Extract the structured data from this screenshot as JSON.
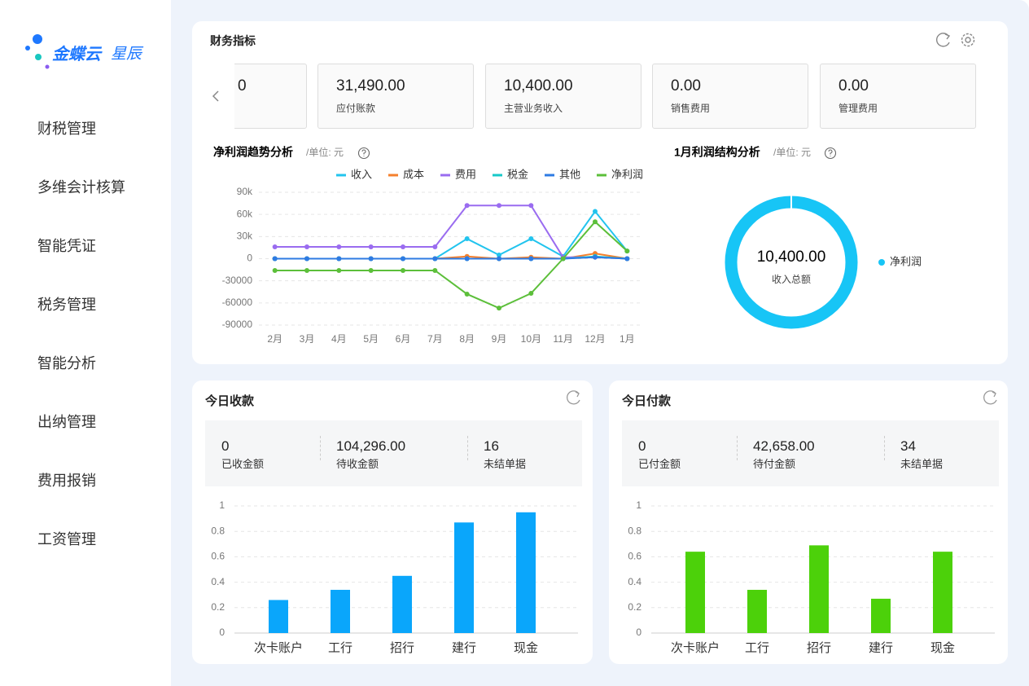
{
  "sidebar": {
    "logo": "金蝶云",
    "logo_sub": "星辰",
    "menu": [
      "财税管理",
      "多维会计核算",
      "智能凭证",
      "税务管理",
      "智能分析",
      "出纳管理",
      "费用报销",
      "工资管理"
    ]
  },
  "finance": {
    "title": "财务指标",
    "cards": [
      {
        "value": "0"
      },
      {
        "value": "31,490.00",
        "label": "应付账款"
      },
      {
        "value": "10,400.00",
        "label": "主营业务收入"
      },
      {
        "value": "0.00",
        "label": "销售费用"
      },
      {
        "value": "0.00",
        "label": "管理费用"
      }
    ]
  },
  "receipts": {
    "title": "今日收款",
    "stats": [
      {
        "value": "0",
        "label": "已收金额"
      },
      {
        "value": "104,296.00",
        "label": "待收金额"
      },
      {
        "value": "16",
        "label": "未结单据"
      }
    ]
  },
  "payments": {
    "title": "今日付款",
    "stats": [
      {
        "value": "0",
        "label": "已付金额"
      },
      {
        "value": "42,658.00",
        "label": "待付金额"
      },
      {
        "value": "34",
        "label": "未结单据"
      }
    ]
  },
  "chart_data": [
    {
      "type": "line",
      "title": "净利润趋势分析",
      "unit": "/单位: 元",
      "categories": [
        "2月",
        "3月",
        "4月",
        "5月",
        "6月",
        "7月",
        "8月",
        "9月",
        "10月",
        "11月",
        "12月",
        "1月"
      ],
      "series": [
        {
          "name": "收入",
          "color": "#22c4ee",
          "values": [
            0,
            0,
            0,
            0,
            0,
            0,
            27000,
            5000,
            27000,
            3000,
            64000,
            10400
          ]
        },
        {
          "name": "成本",
          "color": "#f5802d",
          "values": [
            0,
            0,
            0,
            0,
            0,
            0,
            3000,
            0,
            2000,
            0,
            7000,
            0
          ]
        },
        {
          "name": "费用",
          "color": "#9a6cf0",
          "values": [
            16000,
            16000,
            16000,
            16000,
            16000,
            16000,
            72000,
            72000,
            72000,
            2000,
            2000,
            0
          ]
        },
        {
          "name": "税金",
          "color": "#17c9c9",
          "values": [
            0,
            0,
            0,
            0,
            0,
            0,
            0,
            0,
            0,
            0,
            3000,
            0
          ]
        },
        {
          "name": "其他",
          "color": "#2e7be3",
          "values": [
            0,
            0,
            0,
            0,
            0,
            0,
            0,
            0,
            0,
            0,
            2000,
            0
          ]
        },
        {
          "name": "净利润",
          "color": "#5cbf3a",
          "values": [
            -16000,
            -16000,
            -16000,
            -16000,
            -16000,
            -16000,
            -48000,
            -67000,
            -47000,
            0,
            50000,
            10400
          ]
        }
      ],
      "ylim": [
        -90000,
        90000
      ],
      "yticks": [
        {
          "value": 90000,
          "label": "90k"
        },
        {
          "value": 60000,
          "label": "60k"
        },
        {
          "value": 30000,
          "label": "30k"
        },
        0,
        -30000,
        -60000,
        -90000
      ],
      "grid": true
    },
    {
      "type": "donut",
      "title": "1月利润结构分析",
      "unit": "/单位: 元",
      "center_value": "10,400.00",
      "center_label": "收入总额",
      "categories": [
        "净利润"
      ],
      "values": [
        10400
      ],
      "color": "#17c5f6"
    },
    {
      "type": "bar",
      "categories": [
        "次卡账户",
        "工行",
        "招行",
        "建行",
        "现金"
      ],
      "values": [
        0.26,
        0.34,
        0.45,
        0.87,
        0.95
      ],
      "color": "#0aa6fb",
      "ylim": [
        0,
        1
      ],
      "yticks": [
        0,
        0.2,
        0.4,
        0.6,
        0.8,
        1
      ],
      "grid": true
    },
    {
      "type": "bar",
      "categories": [
        "次卡账户",
        "工行",
        "招行",
        "建行",
        "现金"
      ],
      "values": [
        0.64,
        0.34,
        0.69,
        0.27,
        0.64
      ],
      "color": "#4cd10a",
      "ylim": [
        0,
        1
      ],
      "yticks": [
        0,
        0.2,
        0.4,
        0.6,
        0.8,
        1
      ],
      "grid": true
    }
  ]
}
